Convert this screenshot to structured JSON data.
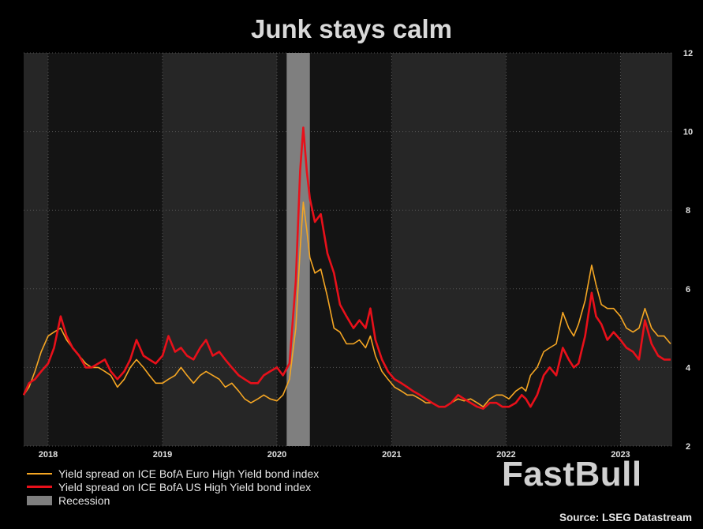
{
  "chart_data": {
    "type": "line",
    "title": "Junk stays calm",
    "x_range": [
      "2017-10-15",
      "2023-06-15"
    ],
    "ylim": [
      2,
      12
    ],
    "y_ticks": [
      2,
      4,
      6,
      8,
      10,
      12
    ],
    "x_ticks": [
      "2018",
      "2019",
      "2020",
      "2021",
      "2022",
      "2023"
    ],
    "y_axis_side": "right",
    "grid": true,
    "legend_placement": "bottom-left",
    "recession": {
      "label": "Recession",
      "start": "2020-02-01",
      "end": "2020-04-15",
      "color": "#7f7f7f"
    },
    "series": [
      {
        "name": "Yield spread on ICE BofA Euro High Yield bond index",
        "color": "#f5a623",
        "points": [
          [
            "2017-10-15",
            3.3
          ],
          [
            "2017-11-01",
            3.5
          ],
          [
            "2017-11-20",
            3.9
          ],
          [
            "2017-12-10",
            4.4
          ],
          [
            "2018-01-01",
            4.8
          ],
          [
            "2018-01-20",
            4.9
          ],
          [
            "2018-02-10",
            5.0
          ],
          [
            "2018-03-01",
            4.7
          ],
          [
            "2018-03-20",
            4.5
          ],
          [
            "2018-04-10",
            4.3
          ],
          [
            "2018-05-01",
            4.1
          ],
          [
            "2018-05-20",
            4.0
          ],
          [
            "2018-06-10",
            4.0
          ],
          [
            "2018-07-01",
            3.9
          ],
          [
            "2018-07-20",
            3.8
          ],
          [
            "2018-08-10",
            3.5
          ],
          [
            "2018-09-01",
            3.7
          ],
          [
            "2018-09-20",
            4.0
          ],
          [
            "2018-10-10",
            4.2
          ],
          [
            "2018-11-01",
            4.0
          ],
          [
            "2018-11-20",
            3.8
          ],
          [
            "2018-12-10",
            3.6
          ],
          [
            "2019-01-01",
            3.6
          ],
          [
            "2019-01-20",
            3.7
          ],
          [
            "2019-02-10",
            3.8
          ],
          [
            "2019-03-01",
            4.0
          ],
          [
            "2019-03-20",
            3.8
          ],
          [
            "2019-04-10",
            3.6
          ],
          [
            "2019-05-01",
            3.8
          ],
          [
            "2019-05-20",
            3.9
          ],
          [
            "2019-06-10",
            3.8
          ],
          [
            "2019-07-01",
            3.7
          ],
          [
            "2019-07-20",
            3.5
          ],
          [
            "2019-08-10",
            3.6
          ],
          [
            "2019-09-01",
            3.4
          ],
          [
            "2019-09-20",
            3.2
          ],
          [
            "2019-10-10",
            3.1
          ],
          [
            "2019-11-01",
            3.2
          ],
          [
            "2019-11-20",
            3.3
          ],
          [
            "2019-12-10",
            3.2
          ],
          [
            "2020-01-01",
            3.15
          ],
          [
            "2020-01-20",
            3.3
          ],
          [
            "2020-02-10",
            3.7
          ],
          [
            "2020-03-01",
            5.0
          ],
          [
            "2020-03-15",
            7.0
          ],
          [
            "2020-03-25",
            8.2
          ],
          [
            "2020-04-05",
            7.5
          ],
          [
            "2020-04-15",
            6.8
          ],
          [
            "2020-05-01",
            6.4
          ],
          [
            "2020-05-20",
            6.5
          ],
          [
            "2020-06-10",
            5.8
          ],
          [
            "2020-07-01",
            5.0
          ],
          [
            "2020-07-20",
            4.9
          ],
          [
            "2020-08-10",
            4.6
          ],
          [
            "2020-09-01",
            4.6
          ],
          [
            "2020-09-20",
            4.7
          ],
          [
            "2020-10-10",
            4.5
          ],
          [
            "2020-10-25",
            4.8
          ],
          [
            "2020-11-10",
            4.3
          ],
          [
            "2020-12-01",
            3.9
          ],
          [
            "2020-12-20",
            3.7
          ],
          [
            "2021-01-10",
            3.5
          ],
          [
            "2021-02-01",
            3.4
          ],
          [
            "2021-02-20",
            3.3
          ],
          [
            "2021-03-10",
            3.3
          ],
          [
            "2021-04-01",
            3.2
          ],
          [
            "2021-04-20",
            3.1
          ],
          [
            "2021-05-10",
            3.1
          ],
          [
            "2021-06-01",
            3.0
          ],
          [
            "2021-06-20",
            3.0
          ],
          [
            "2021-07-10",
            3.1
          ],
          [
            "2021-08-01",
            3.2
          ],
          [
            "2021-08-20",
            3.15
          ],
          [
            "2021-09-10",
            3.2
          ],
          [
            "2021-10-01",
            3.1
          ],
          [
            "2021-10-20",
            3.0
          ],
          [
            "2021-11-10",
            3.2
          ],
          [
            "2021-12-01",
            3.3
          ],
          [
            "2021-12-20",
            3.3
          ],
          [
            "2022-01-10",
            3.2
          ],
          [
            "2022-02-01",
            3.4
          ],
          [
            "2022-02-20",
            3.5
          ],
          [
            "2022-03-05",
            3.4
          ],
          [
            "2022-03-20",
            3.8
          ],
          [
            "2022-04-10",
            4.0
          ],
          [
            "2022-05-01",
            4.4
          ],
          [
            "2022-05-20",
            4.5
          ],
          [
            "2022-06-10",
            4.6
          ],
          [
            "2022-07-01",
            5.4
          ],
          [
            "2022-07-20",
            5.0
          ],
          [
            "2022-08-05",
            4.8
          ],
          [
            "2022-08-20",
            5.1
          ],
          [
            "2022-09-10",
            5.7
          ],
          [
            "2022-10-01",
            6.6
          ],
          [
            "2022-10-15",
            6.1
          ],
          [
            "2022-11-01",
            5.6
          ],
          [
            "2022-11-20",
            5.5
          ],
          [
            "2022-12-10",
            5.5
          ],
          [
            "2023-01-01",
            5.3
          ],
          [
            "2023-01-20",
            5.0
          ],
          [
            "2023-02-10",
            4.9
          ],
          [
            "2023-03-01",
            5.0
          ],
          [
            "2023-03-20",
            5.5
          ],
          [
            "2023-04-10",
            5.0
          ],
          [
            "2023-05-01",
            4.8
          ],
          [
            "2023-05-20",
            4.8
          ],
          [
            "2023-06-10",
            4.6
          ]
        ]
      },
      {
        "name": "Yield spread on ICE BofA US High Yield bond index",
        "color": "#e8101a",
        "points": [
          [
            "2017-10-15",
            3.3
          ],
          [
            "2017-11-01",
            3.6
          ],
          [
            "2017-11-20",
            3.7
          ],
          [
            "2017-12-10",
            3.9
          ],
          [
            "2018-01-01",
            4.1
          ],
          [
            "2018-01-20",
            4.5
          ],
          [
            "2018-02-10",
            5.3
          ],
          [
            "2018-03-01",
            4.8
          ],
          [
            "2018-03-20",
            4.5
          ],
          [
            "2018-04-10",
            4.3
          ],
          [
            "2018-05-01",
            4.0
          ],
          [
            "2018-05-20",
            4.0
          ],
          [
            "2018-06-10",
            4.1
          ],
          [
            "2018-07-01",
            4.2
          ],
          [
            "2018-07-20",
            3.9
          ],
          [
            "2018-08-10",
            3.7
          ],
          [
            "2018-09-01",
            3.9
          ],
          [
            "2018-09-20",
            4.2
          ],
          [
            "2018-10-10",
            4.7
          ],
          [
            "2018-11-01",
            4.3
          ],
          [
            "2018-11-20",
            4.2
          ],
          [
            "2018-12-10",
            4.1
          ],
          [
            "2019-01-01",
            4.3
          ],
          [
            "2019-01-20",
            4.8
          ],
          [
            "2019-02-10",
            4.4
          ],
          [
            "2019-03-01",
            4.5
          ],
          [
            "2019-03-20",
            4.3
          ],
          [
            "2019-04-10",
            4.2
          ],
          [
            "2019-05-01",
            4.5
          ],
          [
            "2019-05-20",
            4.7
          ],
          [
            "2019-06-10",
            4.3
          ],
          [
            "2019-07-01",
            4.4
          ],
          [
            "2019-07-20",
            4.2
          ],
          [
            "2019-08-10",
            4.0
          ],
          [
            "2019-09-01",
            3.8
          ],
          [
            "2019-09-20",
            3.7
          ],
          [
            "2019-10-10",
            3.6
          ],
          [
            "2019-11-01",
            3.6
          ],
          [
            "2019-11-20",
            3.8
          ],
          [
            "2019-12-10",
            3.9
          ],
          [
            "2020-01-01",
            4.0
          ],
          [
            "2020-01-20",
            3.8
          ],
          [
            "2020-02-10",
            4.1
          ],
          [
            "2020-03-01",
            6.2
          ],
          [
            "2020-03-15",
            9.0
          ],
          [
            "2020-03-25",
            10.1
          ],
          [
            "2020-04-05",
            9.0
          ],
          [
            "2020-04-15",
            8.3
          ],
          [
            "2020-05-01",
            7.7
          ],
          [
            "2020-05-20",
            7.9
          ],
          [
            "2020-06-10",
            6.9
          ],
          [
            "2020-07-01",
            6.4
          ],
          [
            "2020-07-20",
            5.6
          ],
          [
            "2020-08-10",
            5.3
          ],
          [
            "2020-09-01",
            5.0
          ],
          [
            "2020-09-20",
            5.2
          ],
          [
            "2020-10-10",
            5.0
          ],
          [
            "2020-10-25",
            5.5
          ],
          [
            "2020-11-10",
            4.7
          ],
          [
            "2020-12-01",
            4.2
          ],
          [
            "2020-12-20",
            3.9
          ],
          [
            "2021-01-10",
            3.7
          ],
          [
            "2021-02-01",
            3.6
          ],
          [
            "2021-02-20",
            3.5
          ],
          [
            "2021-03-10",
            3.4
          ],
          [
            "2021-04-01",
            3.3
          ],
          [
            "2021-04-20",
            3.2
          ],
          [
            "2021-05-10",
            3.1
          ],
          [
            "2021-06-01",
            3.0
          ],
          [
            "2021-06-20",
            3.0
          ],
          [
            "2021-07-10",
            3.1
          ],
          [
            "2021-08-01",
            3.3
          ],
          [
            "2021-08-20",
            3.2
          ],
          [
            "2021-09-10",
            3.1
          ],
          [
            "2021-10-01",
            3.0
          ],
          [
            "2021-10-20",
            2.95
          ],
          [
            "2021-11-10",
            3.1
          ],
          [
            "2021-12-01",
            3.1
          ],
          [
            "2021-12-20",
            3.0
          ],
          [
            "2022-01-10",
            3.0
          ],
          [
            "2022-02-01",
            3.1
          ],
          [
            "2022-02-20",
            3.3
          ],
          [
            "2022-03-05",
            3.2
          ],
          [
            "2022-03-20",
            3.0
          ],
          [
            "2022-04-10",
            3.3
          ],
          [
            "2022-05-01",
            3.8
          ],
          [
            "2022-05-20",
            4.0
          ],
          [
            "2022-06-10",
            3.8
          ],
          [
            "2022-07-01",
            4.5
          ],
          [
            "2022-07-20",
            4.2
          ],
          [
            "2022-08-05",
            4.0
          ],
          [
            "2022-08-20",
            4.1
          ],
          [
            "2022-09-10",
            4.8
          ],
          [
            "2022-10-01",
            5.9
          ],
          [
            "2022-10-15",
            5.3
          ],
          [
            "2022-11-01",
            5.1
          ],
          [
            "2022-11-20",
            4.7
          ],
          [
            "2022-12-10",
            4.9
          ],
          [
            "2023-01-01",
            4.7
          ],
          [
            "2023-01-20",
            4.5
          ],
          [
            "2023-02-10",
            4.4
          ],
          [
            "2023-03-01",
            4.2
          ],
          [
            "2023-03-20",
            5.2
          ],
          [
            "2023-04-10",
            4.6
          ],
          [
            "2023-05-01",
            4.3
          ],
          [
            "2023-05-20",
            4.2
          ],
          [
            "2023-06-10",
            4.2
          ]
        ]
      }
    ],
    "legend": [
      "Yield spread on ICE BofA Euro High Yield bond index",
      "Yield spread on ICE BofA US High Yield bond index",
      "Recession"
    ]
  },
  "watermark": "FastBull",
  "source": "Source: LSEG Datastream"
}
